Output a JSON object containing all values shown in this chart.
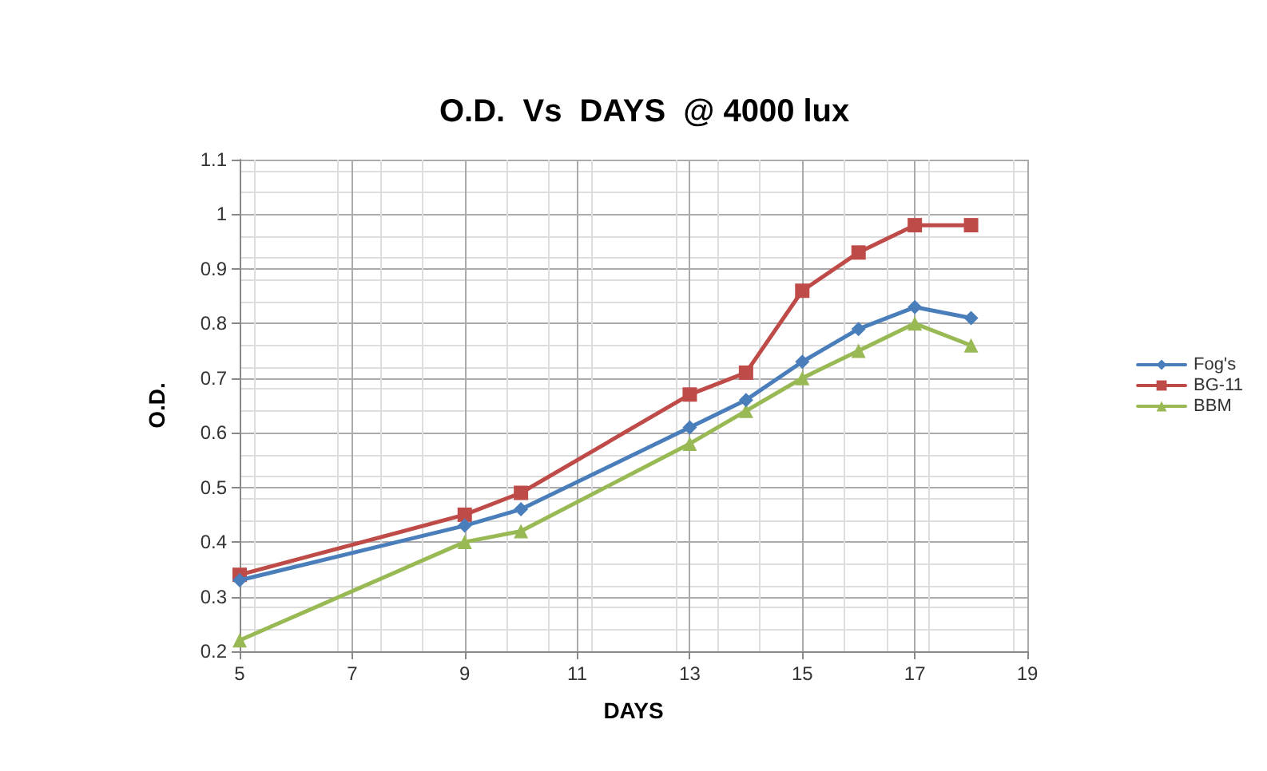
{
  "chart_data": {
    "type": "line",
    "title": "O.D.  Vs  DAYS  @ 4000 lux",
    "xlabel": "DAYS",
    "ylabel": "O.D.",
    "x": [
      5,
      9,
      10,
      13,
      14,
      15,
      16,
      17,
      18
    ],
    "series": [
      {
        "name": "Fog's",
        "color": "#4a7ebb",
        "marker": "diamond",
        "values": [
          0.33,
          0.43,
          0.46,
          0.61,
          0.66,
          0.73,
          0.79,
          0.83,
          0.81
        ]
      },
      {
        "name": "BG-11",
        "color": "#be4b48",
        "marker": "square",
        "values": [
          0.34,
          0.45,
          0.49,
          0.67,
          0.71,
          0.86,
          0.93,
          0.98,
          0.98
        ]
      },
      {
        "name": "BBM",
        "color": "#98b954",
        "marker": "triangle",
        "values": [
          0.22,
          0.4,
          0.42,
          0.58,
          0.64,
          0.7,
          0.75,
          0.8,
          0.76
        ]
      }
    ],
    "xlim": [
      5,
      19
    ],
    "xticks": [
      5,
      7,
      9,
      11,
      13,
      15,
      17,
      19
    ],
    "ylim": [
      0.2,
      1.1
    ],
    "yticks": [
      0.2,
      0.3,
      0.4,
      0.5,
      0.6,
      0.7,
      0.8,
      0.9,
      1,
      1.1
    ],
    "grid": true,
    "legend": "right",
    "line_style": "solid"
  }
}
